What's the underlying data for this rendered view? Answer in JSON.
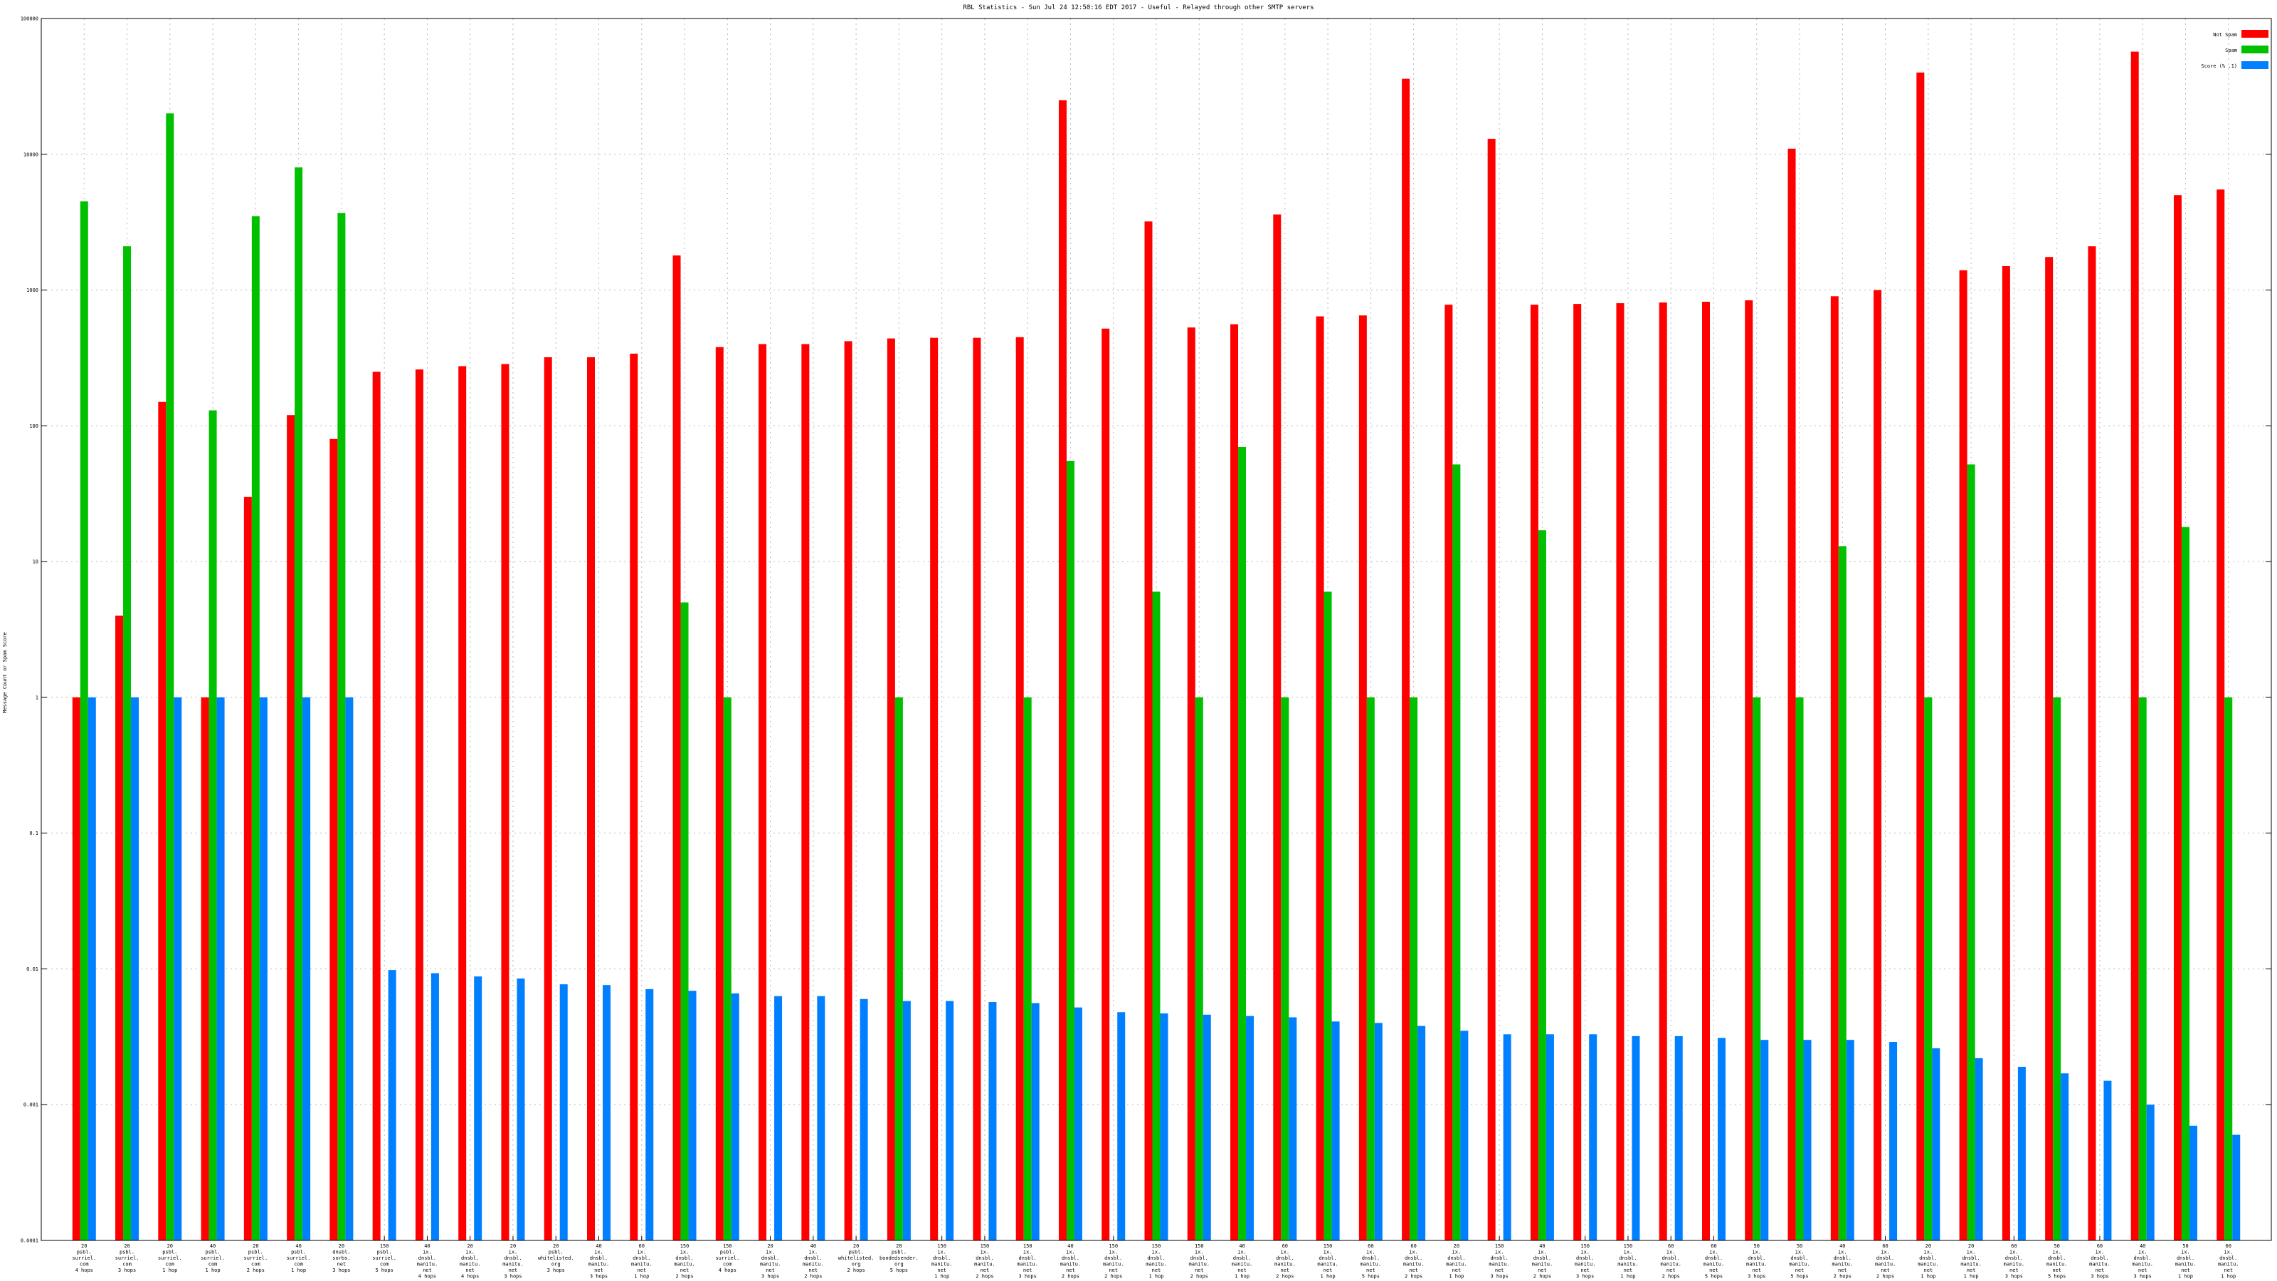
{
  "chart_data": {
    "type": "bar",
    "title": "RBL Statistics - Sun Jul 24 12:50:16 EDT 2017 - Useful - Relayed through other SMTP servers",
    "xlabel": "",
    "ylabel": "Message Count or Spam Score",
    "yscale": "log",
    "ylim": [
      0.0001,
      100000
    ],
    "yticks": [
      "0.0001",
      "0.001",
      "0.01",
      "0.1",
      "1",
      "10",
      "100",
      "1000",
      "10000",
      "100000"
    ],
    "grid": true,
    "legend_position": "top-right",
    "series": [
      {
        "name": "Not Spam",
        "color": "#ff0000",
        "values": [
          1,
          4,
          150,
          1,
          30,
          120,
          80,
          250,
          260,
          275,
          285,
          320,
          320,
          340,
          1800,
          380,
          400,
          400,
          420,
          440,
          445,
          445,
          450,
          25000,
          520,
          3200,
          530,
          560,
          3600,
          640,
          650,
          36000,
          780,
          13000,
          780,
          790,
          800,
          810,
          820,
          840,
          11000,
          900,
          1000,
          40000,
          1400,
          1500,
          1750,
          2100,
          57000,
          5000,
          5500
        ]
      },
      {
        "name": "Spam",
        "color": "#00c000",
        "values": [
          4500,
          2100,
          20000,
          130,
          3500,
          8000,
          3700,
          null,
          null,
          null,
          null,
          null,
          null,
          null,
          5,
          1,
          null,
          null,
          null,
          1,
          null,
          null,
          1,
          55,
          null,
          6,
          1,
          70,
          1,
          6,
          1,
          1,
          52,
          null,
          17,
          null,
          null,
          null,
          null,
          1,
          1,
          13,
          null,
          1,
          52,
          null,
          1,
          null,
          1,
          18,
          1
        ]
      },
      {
        "name": "Score (% .1)",
        "color": "#0080ff",
        "values": [
          1,
          1,
          1,
          1,
          1,
          1,
          1,
          0.0098,
          0.0093,
          0.0088,
          0.0085,
          0.0077,
          0.0076,
          0.0071,
          0.0069,
          0.0066,
          0.0063,
          0.0063,
          0.006,
          0.0058,
          0.0058,
          0.0057,
          0.0056,
          0.0052,
          0.0048,
          0.0047,
          0.0046,
          0.0045,
          0.0044,
          0.0041,
          0.004,
          0.0038,
          0.0035,
          0.0033,
          0.0033,
          0.0033,
          0.0032,
          0.0032,
          0.0031,
          0.003,
          0.003,
          0.003,
          0.0029,
          0.0026,
          0.0022,
          0.0019,
          0.0017,
          0.0015,
          0.001,
          0.0007,
          0.0006
        ]
      }
    ],
    "categories": [
      [
        "20",
        "psbl.",
        "surriel.",
        "com",
        "4 hops"
      ],
      [
        "20",
        "psbl.",
        "surriel.",
        "com",
        "3 hops"
      ],
      [
        "20",
        "psbl.",
        "surriel.",
        "com",
        "1 hop"
      ],
      [
        "40",
        "psbl.",
        "surriel.",
        "com",
        "1 hop"
      ],
      [
        "20",
        "psbl.",
        "surriel.",
        "com",
        "2 hops"
      ],
      [
        "40",
        "psbl.",
        "surriel.",
        "com",
        "1 hop"
      ],
      [
        "20",
        "dnsbl.",
        "sorbs.",
        "net",
        "3 hops"
      ],
      [
        "150",
        "psbl.",
        "surriel.",
        "com",
        "5 hops"
      ],
      [
        "40",
        "ix.",
        "dnsbl.",
        "manitu.",
        "net",
        "4 hops"
      ],
      [
        "20",
        "ix.",
        "dnsbl.",
        "manitu.",
        "net",
        "4 hops"
      ],
      [
        "20",
        "ix.",
        "dnsbl.",
        "manitu.",
        "net",
        "3 hops"
      ],
      [
        "20",
        "psbl.",
        "whitelisted.",
        "org",
        "3 hops"
      ],
      [
        "40",
        "ix.",
        "dnsbl.",
        "manitu.",
        "net",
        "3 hops"
      ],
      [
        "60",
        "ix.",
        "dnsbl.",
        "manitu.",
        "net",
        "1 hop"
      ],
      [
        "150",
        "ix.",
        "dnsbl.",
        "manitu.",
        "net",
        "2 hops"
      ],
      [
        "150",
        "psbl.",
        "surriel.",
        "com",
        "4 hops"
      ],
      [
        "20",
        "ix.",
        "dnsbl.",
        "manitu.",
        "net",
        "3 hops"
      ],
      [
        "40",
        "ix.",
        "dnsbl.",
        "manitu.",
        "net",
        "2 hops"
      ],
      [
        "20",
        "psbl.",
        "whitelisted.",
        "org",
        "2 hops"
      ],
      [
        "20",
        "psbl.",
        "bondedsender.",
        "org",
        "5 hops"
      ],
      [
        "150",
        "ix.",
        "dnsbl.",
        "manitu.",
        "net",
        "1 hop"
      ],
      [
        "150",
        "ix.",
        "dnsbl.",
        "manitu.",
        "net",
        "2 hops"
      ],
      [
        "150",
        "ix.",
        "dnsbl.",
        "manitu.",
        "net",
        "3 hops"
      ],
      [
        "40",
        "ix.",
        "dnsbl.",
        "manitu.",
        "net",
        "2 hops"
      ],
      [
        "150",
        "ix.",
        "dnsbl.",
        "manitu.",
        "net",
        "2 hops"
      ],
      [
        "150",
        "ix.",
        "dnsbl.",
        "manitu.",
        "net",
        "1 hop"
      ],
      [
        "150",
        "ix.",
        "dnsbl.",
        "manitu.",
        "net",
        "2 hops"
      ],
      [
        "40",
        "ix.",
        "dnsbl.",
        "manitu.",
        "net",
        "1 hop"
      ],
      [
        "60",
        "ix.",
        "dnsbl.",
        "manitu.",
        "net",
        "2 hops"
      ],
      [
        "150",
        "ix.",
        "dnsbl.",
        "manitu.",
        "net",
        "1 hop"
      ],
      [
        "60",
        "ix.",
        "dnsbl.",
        "manitu.",
        "net",
        "5 hops"
      ],
      [
        "60",
        "ix.",
        "dnsbl.",
        "manitu.",
        "net",
        "2 hops"
      ],
      [
        "20",
        "ix.",
        "dnsbl.",
        "manitu.",
        "net",
        "1 hop"
      ],
      [
        "150",
        "ix.",
        "dnsbl.",
        "manitu.",
        "net",
        "3 hops"
      ],
      [
        "40",
        "ix.",
        "dnsbl.",
        "manitu.",
        "net",
        "2 hops"
      ],
      [
        "150",
        "ix.",
        "dnsbl.",
        "manitu.",
        "net",
        "3 hops"
      ],
      [
        "150",
        "ix.",
        "dnsbl.",
        "manitu.",
        "net",
        "1 hop"
      ],
      [
        "60",
        "ix.",
        "dnsbl.",
        "manitu.",
        "net",
        "2 hops"
      ],
      [
        "60",
        "ix.",
        "dnsbl.",
        "manitu.",
        "net",
        "5 hops"
      ],
      [
        "50",
        "ix.",
        "dnsbl.",
        "manitu.",
        "net",
        "3 hops"
      ],
      [
        "50",
        "ix.",
        "dnsbl.",
        "manitu.",
        "net",
        "5 hops"
      ],
      [
        "40",
        "ix.",
        "dnsbl.",
        "manitu.",
        "net",
        "2 hops"
      ],
      [
        "60",
        "ix.",
        "dnsbl.",
        "manitu.",
        "net",
        "2 hops"
      ],
      [
        "20",
        "ix.",
        "dnsbl.",
        "manitu.",
        "net",
        "1 hop"
      ],
      [
        "20",
        "ix.",
        "dnsbl.",
        "manitu.",
        "net",
        "1 hop"
      ],
      [
        "60",
        "ix.",
        "dnsbl.",
        "manitu.",
        "net",
        "3 hops"
      ],
      [
        "50",
        "ix.",
        "dnsbl.",
        "manitu.",
        "net",
        "5 hops"
      ],
      [
        "60",
        "ix.",
        "dnsbl.",
        "manitu.",
        "net",
        "3 hops"
      ],
      [
        "40",
        "ix.",
        "dnsbl.",
        "manitu.",
        "net",
        "3 hops"
      ],
      [
        "50",
        "ix.",
        "dnsbl.",
        "manitu.",
        "net",
        "1 hop"
      ],
      [
        "60",
        "ix.",
        "dnsbl.",
        "manitu.",
        "net",
        "1 hop"
      ]
    ]
  }
}
